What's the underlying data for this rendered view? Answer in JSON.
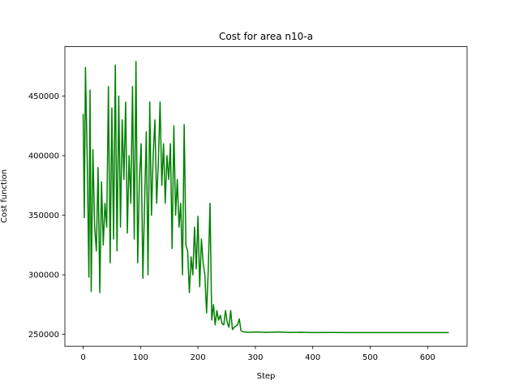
{
  "chart_data": {
    "type": "line",
    "title": "Cost for area n10-a",
    "x_label": "Step",
    "y_label": "Cost function",
    "x": [
      0,
      2,
      4,
      7,
      10,
      12,
      14,
      17,
      20,
      23,
      26,
      29,
      32,
      35,
      38,
      41,
      44,
      47,
      50,
      53,
      56,
      59,
      62,
      65,
      68,
      71,
      74,
      77,
      80,
      83,
      86,
      89,
      92,
      95,
      98,
      101,
      104,
      107,
      110,
      113,
      116,
      119,
      122,
      125,
      128,
      131,
      134,
      137,
      140,
      143,
      146,
      149,
      152,
      155,
      158,
      161,
      164,
      167,
      170,
      173,
      176,
      179,
      182,
      185,
      188,
      191,
      194,
      197,
      200,
      203,
      206,
      209,
      212,
      215,
      218,
      221,
      224,
      227,
      230,
      233,
      236,
      239,
      242,
      245,
      248,
      251,
      254,
      257,
      260,
      263,
      266,
      269,
      272,
      275,
      280,
      290,
      300,
      320,
      340,
      360,
      380,
      400,
      430,
      460,
      500,
      550,
      600,
      637
    ],
    "series": [
      {
        "color": "#008000",
        "values": [
          435000,
          348000,
          474000,
          400000,
          298000,
          455000,
          286000,
          405000,
          340000,
          320000,
          390000,
          285000,
          378000,
          325000,
          360000,
          340000,
          458000,
          310000,
          440000,
          330000,
          476000,
          320000,
          450000,
          340000,
          430000,
          380000,
          445000,
          335000,
          400000,
          360000,
          458000,
          330000,
          479000,
          310000,
          380000,
          410000,
          297000,
          360000,
          420000,
          300000,
          445000,
          350000,
          400000,
          430000,
          360000,
          395000,
          445000,
          375000,
          410000,
          360000,
          400000,
          380000,
          410000,
          322000,
          425000,
          350000,
          380000,
          340000,
          360000,
          300000,
          426000,
          325000,
          320000,
          285000,
          315000,
          300000,
          340000,
          305000,
          349000,
          290000,
          330000,
          310000,
          300000,
          268000,
          305000,
          360000,
          262000,
          275000,
          258000,
          270000,
          262000,
          266000,
          259000,
          258000,
          270000,
          260000,
          256000,
          270000,
          254000,
          256000,
          257000,
          258000,
          263000,
          253000,
          252000,
          251800,
          252000,
          251700,
          252000,
          251600,
          251800,
          251500,
          251600,
          251500,
          251500,
          251500,
          251500,
          251500
        ]
      }
    ],
    "xlim": [
      -31.85,
      668.85
    ],
    "xticks": [
      0,
      100,
      200,
      300,
      400,
      500,
      600
    ],
    "ylim": [
      240075,
      491425
    ],
    "yticks": [
      250000,
      300000,
      350000,
      400000,
      450000
    ]
  }
}
